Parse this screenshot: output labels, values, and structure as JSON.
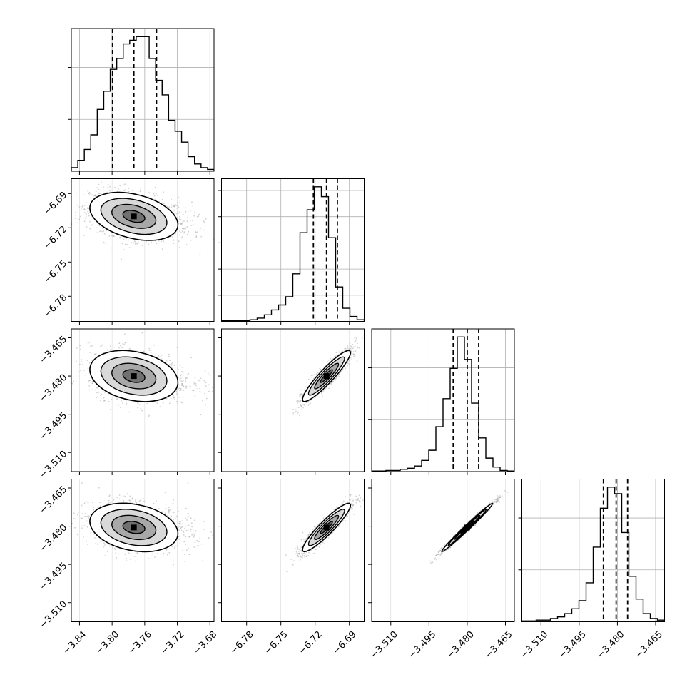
{
  "chart_data": {
    "type": "corner",
    "parameters": 4,
    "quantiles": [
      0.16,
      0.5,
      0.84
    ],
    "params": [
      {
        "range": [
          -3.85,
          -3.675
        ],
        "xticks": [
          -3.84,
          -3.8,
          -3.76,
          -3.72,
          -3.68
        ],
        "xtick_labels": [
          "−3.84",
          "−3.80",
          "−3.76",
          "−3.72",
          "−3.68"
        ],
        "quantile_values": [
          -3.7995,
          -3.7733,
          -3.7455
        ],
        "hist": [
          1,
          3,
          6,
          10,
          17,
          22,
          28,
          31,
          35,
          36,
          37,
          37,
          31,
          25,
          21,
          14,
          11,
          8,
          4,
          2,
          1,
          0.5
        ]
      },
      {
        "range": [
          -6.802,
          -6.677
        ],
        "xticks": [
          -6.78,
          -6.75,
          -6.72,
          -6.69
        ],
        "xtick_labels": [
          "−6.78",
          "−6.75",
          "−6.72",
          "−6.69"
        ],
        "yticks": [
          -6.69,
          -6.72,
          -6.75,
          -6.78
        ],
        "ytick_labels": [
          "−6.69",
          "−6.72",
          "−6.75",
          "−6.78"
        ],
        "quantile_values": [
          -6.7215,
          -6.71,
          -6.7005
        ],
        "hist": [
          0.5,
          0.5,
          0.5,
          0.5,
          1,
          2,
          4,
          7,
          10,
          15,
          29,
          54,
          68,
          82,
          76,
          51,
          21,
          8,
          3,
          1
        ]
      },
      {
        "range": [
          -3.5175,
          -3.4615
        ],
        "xticks": [
          -3.51,
          -3.495,
          -3.48,
          -3.465
        ],
        "xtick_labels": [
          "−3.510",
          "−3.495",
          "−3.480",
          "−3.465"
        ],
        "yticks": [
          -3.465,
          -3.48,
          -3.495,
          -3.51
        ],
        "ytick_labels": [
          "−3.465",
          "−3.480",
          "−3.495",
          "−3.510"
        ],
        "quantile_values": [
          -3.4855,
          -3.48,
          -3.4755
        ],
        "hist": [
          0.5,
          0.5,
          1,
          1,
          2,
          3,
          5,
          10,
          19,
          40,
          65,
          92,
          120,
          100,
          61,
          30,
          12,
          4,
          1,
          0.5
        ]
      },
      {
        "range": [
          -3.5175,
          -3.4615
        ],
        "xticks": [
          -3.51,
          -3.495,
          -3.48,
          -3.465
        ],
        "xtick_labels": [
          "−3.510",
          "−3.495",
          "−3.480",
          "−3.465"
        ],
        "yticks": [
          -3.465,
          -3.48,
          -3.495,
          -3.51
        ],
        "ytick_labels": [
          "−3.465",
          "−3.480",
          "−3.495",
          "−3.510"
        ],
        "quantile_values": [
          -3.4855,
          -3.4805,
          -3.476
        ],
        "hist": [
          0.5,
          0.5,
          1,
          1,
          2,
          3,
          5,
          8,
          13,
          24,
          46,
          70,
          83,
          79,
          55,
          28,
          14,
          5,
          2,
          1
        ]
      }
    ],
    "pair_correlations": [
      {
        "pair": [
          0,
          1
        ],
        "rho": -0.35
      },
      {
        "pair": [
          0,
          2
        ],
        "rho": -0.25
      },
      {
        "pair": [
          0,
          3
        ],
        "rho": -0.25
      },
      {
        "pair": [
          1,
          2
        ],
        "rho": 0.92
      },
      {
        "pair": [
          1,
          3
        ],
        "rho": 0.92
      },
      {
        "pair": [
          2,
          3
        ],
        "rho": 0.99
      }
    ],
    "contour_levels_sigma": [
      0.5,
      1.0,
      1.5,
      2.0
    ],
    "grid": true,
    "colors": {
      "hist": "#000000",
      "points": "#9a9a9a",
      "contour": "#000000",
      "grid": "#b0b0b0"
    }
  }
}
